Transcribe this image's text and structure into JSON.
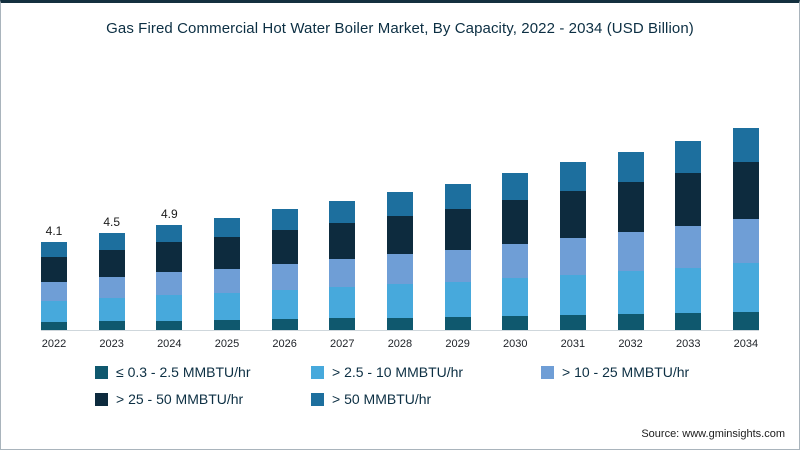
{
  "title": "Gas Fired Commercial Hot Water Boiler Market, By Capacity, 2022 - 2034 (USD Billion)",
  "source": "Source: www.gminsights.com",
  "chart_data": {
    "type": "bar",
    "stacked": true,
    "title": "Gas Fired Commercial Hot Water Boiler Market, By Capacity, 2022 - 2034 (USD Billion)",
    "xlabel": "",
    "ylabel": "USD Billion",
    "ylim": [
      0,
      10
    ],
    "grid": false,
    "legend_position": "bottom",
    "categories": [
      "2022",
      "2023",
      "2024",
      "2025",
      "2026",
      "2027",
      "2028",
      "2029",
      "2030",
      "2031",
      "2032",
      "2033",
      "2034"
    ],
    "data_labels": [
      "4.1",
      "4.5",
      "4.9",
      "",
      "",
      "",
      "",
      "",
      "",
      "",
      "",
      "",
      ""
    ],
    "totals": [
      4.1,
      4.5,
      4.9,
      5.2,
      5.6,
      6.0,
      6.4,
      6.8,
      7.3,
      7.8,
      8.3,
      8.8,
      9.4
    ],
    "series": [
      {
        "name": "≤ 0.3 - 2.5 MMBTU/hr",
        "color": "#0f586e",
        "values": [
          0.37,
          0.4,
          0.44,
          0.47,
          0.5,
          0.54,
          0.58,
          0.61,
          0.66,
          0.7,
          0.75,
          0.79,
          0.85
        ]
      },
      {
        "name": "> 2.5 - 10 MMBTU/hr",
        "color": "#47a9dc",
        "values": [
          0.98,
          1.08,
          1.18,
          1.25,
          1.34,
          1.44,
          1.54,
          1.63,
          1.75,
          1.87,
          1.99,
          2.11,
          2.26
        ]
      },
      {
        "name": "> 10 - 25 MMBTU/hr",
        "color": "#6f9ed6",
        "values": [
          0.9,
          0.99,
          1.08,
          1.14,
          1.23,
          1.32,
          1.41,
          1.5,
          1.61,
          1.72,
          1.83,
          1.94,
          2.07
        ]
      },
      {
        "name": "> 25 - 50 MMBTU/hr",
        "color": "#0d2b3e",
        "values": [
          1.15,
          1.26,
          1.37,
          1.46,
          1.57,
          1.68,
          1.79,
          1.9,
          2.04,
          2.18,
          2.32,
          2.46,
          2.63
        ]
      },
      {
        "name": "> 50 MMBTU/hr",
        "color": "#1d6f9e",
        "values": [
          0.7,
          0.77,
          0.83,
          0.88,
          0.96,
          1.02,
          1.08,
          1.16,
          1.24,
          1.33,
          1.41,
          1.5,
          1.59
        ]
      }
    ]
  }
}
